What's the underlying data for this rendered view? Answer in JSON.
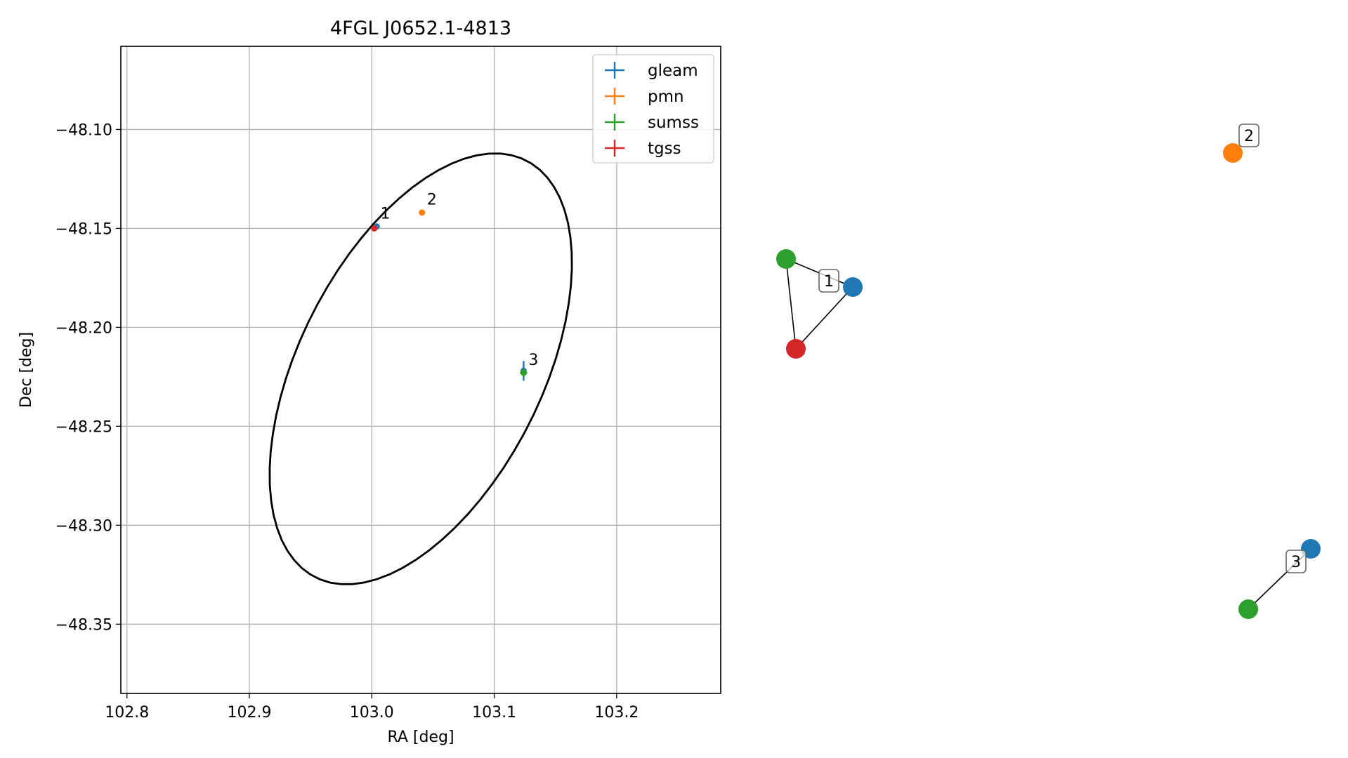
{
  "chart_data": [
    {
      "type": "scatter",
      "title": "4FGL J0652.1-4813",
      "xlabel": "RA [deg]",
      "ylabel": "Dec [deg]",
      "xlim": [
        102.795,
        103.285
      ],
      "ylim": [
        -48.385,
        -48.058
      ],
      "xticks": [
        102.8,
        102.9,
        103.0,
        103.1,
        103.2
      ],
      "xtick_labels": [
        "102.8",
        "102.9",
        "103.0",
        "103.1",
        "103.2"
      ],
      "yticks": [
        -48.1,
        -48.15,
        -48.2,
        -48.25,
        -48.3,
        -48.35
      ],
      "ytick_labels": [
        "−48.10",
        "−48.15",
        "−48.20",
        "−48.25",
        "−48.30",
        "−48.35"
      ],
      "grid": true,
      "legend_position": "top-right",
      "series": [
        {
          "name": "gleam",
          "color": "#1f77b4",
          "points": [
            {
              "x": 103.004,
              "y": -48.149,
              "xerr": 0.002,
              "yerr": 0.001
            },
            {
              "x": 103.124,
              "y": -48.222,
              "xerr": 0.001,
              "yerr": 0.005
            }
          ]
        },
        {
          "name": "pmn",
          "color": "#ff7f0e",
          "points": [
            {
              "x": 103.041,
              "y": -48.142,
              "xerr": 0.001,
              "yerr": 0.001
            }
          ]
        },
        {
          "name": "sumss",
          "color": "#2ca02c",
          "points": [
            {
              "x": 103.124,
              "y": -48.223,
              "xerr": 0.003,
              "yerr": 0.002
            }
          ]
        },
        {
          "name": "tgss",
          "color": "#d62728",
          "points": [
            {
              "x": 103.002,
              "y": -48.15,
              "xerr": 0.001,
              "yerr": 0.001
            }
          ]
        }
      ],
      "annotations": [
        {
          "text": "1",
          "x": 103.007,
          "y": -48.145
        },
        {
          "text": "2",
          "x": 103.045,
          "y": -48.138
        },
        {
          "text": "3",
          "x": 103.128,
          "y": -48.219
        }
      ],
      "ellipse": {
        "center_x": 103.04,
        "center_y": -48.221,
        "semi_major_deg": 0.12,
        "semi_minor_deg": 0.065,
        "angle_deg_from_north": 30,
        "color": "#000000"
      }
    },
    {
      "type": "diagram",
      "description_note": "",
      "nodes": [
        {
          "id": "g1",
          "color": "#2ca02c",
          "group": "1"
        },
        {
          "id": "b1",
          "color": "#1f77b4",
          "group": "1"
        },
        {
          "id": "r1",
          "color": "#d62728",
          "group": "1"
        },
        {
          "id": "o2",
          "color": "#ff7f0e",
          "group": "2"
        },
        {
          "id": "b3",
          "color": "#1f77b4",
          "group": "3"
        },
        {
          "id": "g3",
          "color": "#2ca02c",
          "group": "3"
        }
      ],
      "edges": [
        {
          "from": "g1",
          "to": "b1"
        },
        {
          "from": "g1",
          "to": "r1"
        },
        {
          "from": "r1",
          "to": "b1"
        },
        {
          "from": "g3",
          "to": "b3"
        }
      ],
      "group_labels": [
        "1",
        "2",
        "3"
      ]
    }
  ]
}
